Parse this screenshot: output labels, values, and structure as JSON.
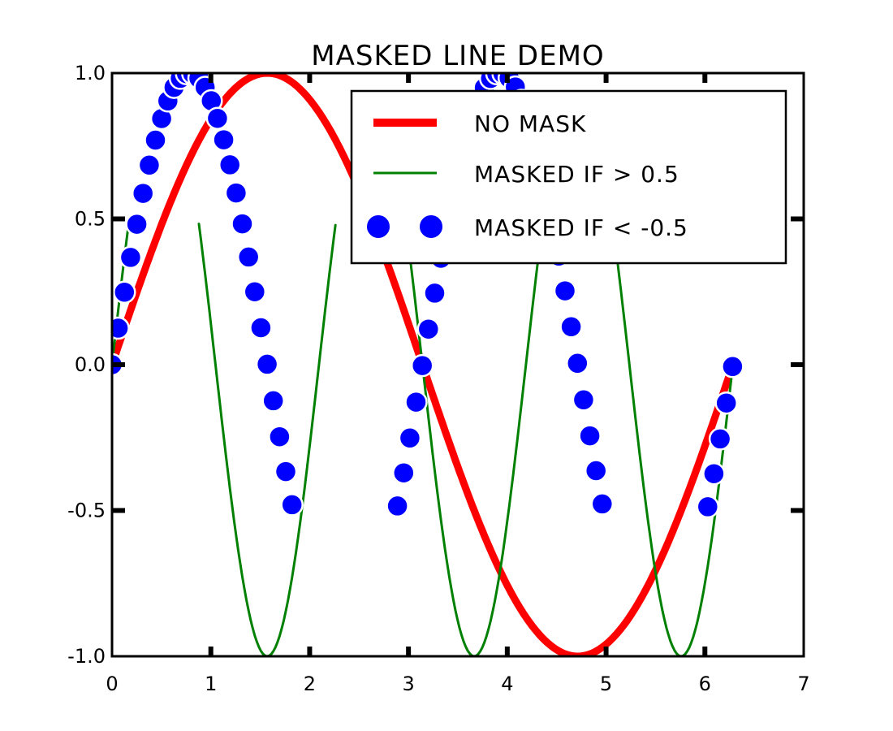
{
  "chart_data": {
    "type": "line",
    "title": "MASKED LINE DEMO",
    "xlabel": "",
    "ylabel": "",
    "xlim": [
      0,
      7
    ],
    "ylim": [
      -1.0,
      1.0
    ],
    "x_ticks": [
      "0",
      "1",
      "2",
      "3",
      "4",
      "5",
      "6",
      "7"
    ],
    "y_ticks": [
      "1.0",
      "0.5",
      "0.0",
      "-0.5",
      "-1.0"
    ],
    "grid": false,
    "legend_position": "top-right",
    "series": [
      {
        "name": "NO MASK",
        "style": "thick-line",
        "color": "#ff0000",
        "function": "sin(x)",
        "x_range": [
          0.0,
          6.28
        ],
        "mask": "none"
      },
      {
        "name": "MASKED IF > 0.5",
        "style": "thin-line",
        "color": "#008000",
        "function": "sin(3x)",
        "x_range": [
          0.0,
          6.28
        ],
        "mask": "y > 0.5"
      },
      {
        "name": "MASKED IF < -0.5",
        "style": "markers",
        "color": "#0000ff",
        "function": "sin(2x)",
        "x_range": [
          0.0,
          6.28
        ],
        "mask": "y < -0.5"
      }
    ]
  }
}
